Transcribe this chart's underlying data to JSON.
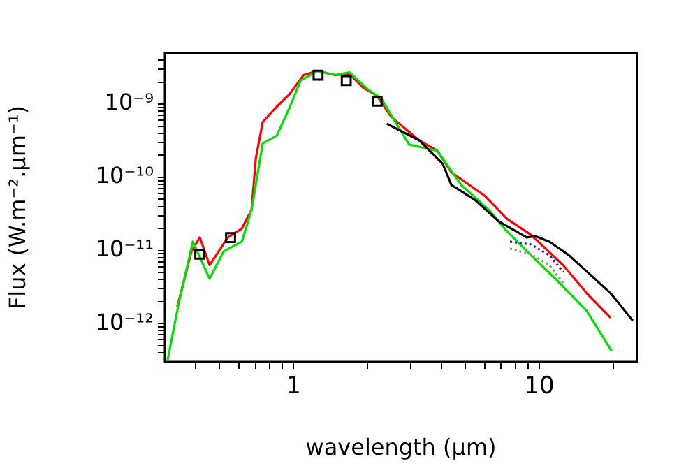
{
  "chart_data": {
    "type": "line",
    "xlabel": "wavelength (μm)",
    "ylabel": "Flux (W.m⁻².μm⁻¹)",
    "log": "xy",
    "grid": false,
    "legend": false,
    "xlim": [
      0.3,
      25
    ],
    "ylim": [
      3e-13,
      5e-09
    ],
    "xticks": [
      {
        "value": 0.4,
        "label": null
      },
      {
        "value": 0.5,
        "label": null
      },
      {
        "value": 0.6,
        "label": null
      },
      {
        "value": 0.7,
        "label": null
      },
      {
        "value": 0.8,
        "label": null
      },
      {
        "value": 0.9,
        "label": null
      },
      1,
      {
        "value": 2,
        "label": null
      },
      {
        "value": 3,
        "label": null
      },
      {
        "value": 4,
        "label": null
      },
      {
        "value": 5,
        "label": null
      },
      {
        "value": 6,
        "label": null
      },
      {
        "value": 7,
        "label": null
      },
      {
        "value": 8,
        "label": null
      },
      {
        "value": 9,
        "label": null
      },
      10,
      {
        "value": 20,
        "label": null
      }
    ],
    "yticks": [
      {
        "value": 4e-13,
        "label": null
      },
      {
        "value": 5e-13,
        "label": null
      },
      {
        "value": 6e-13,
        "label": null
      },
      {
        "value": 7e-13,
        "label": null
      },
      {
        "value": 8e-13,
        "label": null
      },
      {
        "value": 9e-13,
        "label": null
      },
      {
        "value": 1e-12,
        "label": "10⁻¹²"
      },
      {
        "value": 2e-12,
        "label": null
      },
      {
        "value": 3e-12,
        "label": null
      },
      {
        "value": 4e-12,
        "label": null
      },
      {
        "value": 5e-12,
        "label": null
      },
      {
        "value": 6e-12,
        "label": null
      },
      {
        "value": 7e-12,
        "label": null
      },
      {
        "value": 8e-12,
        "label": null
      },
      {
        "value": 9e-12,
        "label": null
      },
      {
        "value": 1e-11,
        "label": "10⁻¹¹"
      },
      {
        "value": 2e-11,
        "label": null
      },
      {
        "value": 3e-11,
        "label": null
      },
      {
        "value": 4e-11,
        "label": null
      },
      {
        "value": 5e-11,
        "label": null
      },
      {
        "value": 6e-11,
        "label": null
      },
      {
        "value": 7e-11,
        "label": null
      },
      {
        "value": 8e-11,
        "label": null
      },
      {
        "value": 9e-11,
        "label": null
      },
      {
        "value": 1e-10,
        "label": "10⁻¹⁰"
      },
      {
        "value": 2e-10,
        "label": null
      },
      {
        "value": 3e-10,
        "label": null
      },
      {
        "value": 4e-10,
        "label": null
      },
      {
        "value": 5e-10,
        "label": null
      },
      {
        "value": 6e-10,
        "label": null
      },
      {
        "value": 7e-10,
        "label": null
      },
      {
        "value": 8e-10,
        "label": null
      },
      {
        "value": 9e-10,
        "label": null
      },
      {
        "value": 1e-09,
        "label": "10⁻⁹"
      },
      {
        "value": 2e-09,
        "label": null
      },
      {
        "value": 3e-09,
        "label": null
      },
      {
        "value": 4e-09,
        "label": null
      }
    ],
    "series": [
      {
        "color": "#ff0000",
        "marker": "none",
        "line_style": "solid",
        "x": [
          0.337,
          0.385,
          0.416,
          0.456,
          0.541,
          0.617,
          0.676,
          0.703,
          0.75,
          0.843,
          0.962,
          1.1,
          1.25,
          1.48,
          1.69,
          1.92,
          2.19,
          2.5,
          3.25,
          3.85,
          4.39,
          6.0,
          7.4,
          9.25,
          12.5,
          15.6,
          19.5
        ],
        "values": [
          1.7e-12,
          9.7e-12,
          1.51e-11,
          6.3e-12,
          1.51e-11,
          2e-11,
          3.6e-11,
          1.8e-10,
          5.7e-10,
          8.8e-10,
          1.36e-09,
          2.5e-09,
          2.85e-09,
          2.5e-09,
          2.61e-09,
          1.69e-09,
          1.3e-09,
          6.7e-10,
          3.2e-10,
          2.3e-10,
          1.17e-10,
          5.6e-11,
          2.7e-11,
          1.64e-11,
          6.3e-12,
          2.6e-12,
          1.2e-12
        ]
      },
      {
        "color": "#00e000",
        "marker": "none",
        "line_style": "solid",
        "x": [
          0.308,
          0.342,
          0.39,
          0.456,
          0.52,
          0.617,
          0.676,
          0.75,
          0.855,
          0.962,
          1.07,
          1.25,
          1.48,
          1.69,
          2.0,
          2.28,
          2.56,
          2.96,
          3.85,
          4.81,
          6.24,
          7.31,
          9.25,
          12.0,
          15.6,
          19.7
        ],
        "values": [
          3.2e-13,
          1.93e-12,
          1.32e-11,
          4.1e-12,
          9.7e-12,
          1.32e-11,
          3.6e-11,
          2.9e-10,
          3.7e-10,
          8.8e-10,
          2.1e-09,
          2.85e-09,
          2.5e-09,
          2.73e-09,
          1.62e-09,
          1.19e-09,
          6.2e-10,
          2.8e-10,
          2.3e-10,
          7.9e-11,
          3.6e-11,
          1.9e-11,
          8.6e-12,
          3.7e-12,
          1.49e-12,
          4.2e-13
        ]
      },
      {
        "color": "#000000",
        "marker": "none",
        "line_style": "solid",
        "x": [
          2.4,
          3.25,
          4.05,
          4.39,
          5.48,
          6.84,
          8.89,
          9.61,
          11.0,
          13.2,
          16.2,
          19.5,
          24.0
        ],
        "values": [
          5.4e-10,
          3.2e-10,
          1.53e-10,
          7.9e-11,
          4.9e-11,
          2.5e-11,
          1.51e-11,
          1.57e-11,
          1.32e-11,
          8.6e-12,
          4.6e-12,
          2.6e-12,
          1.1e-12
        ]
      },
      {
        "color": "#2020b0",
        "marker": "none",
        "line_style": "dotted",
        "x": [
          7.6,
          9.25,
          11.0,
          12.5
        ],
        "values": [
          1.32e-11,
          1.21e-11,
          8.6e-12,
          5.1e-12
        ]
      },
      {
        "color": "#8a9a6a",
        "marker": "none",
        "line_style": "dotted",
        "x": [
          7.6,
          9.25,
          11.0,
          12.5
        ],
        "values": [
          1.06e-11,
          8.9e-12,
          6.3e-12,
          3.6e-12
        ]
      },
      {
        "type": "scatter",
        "color": "#000000",
        "marker": "square",
        "x": [
          0.416,
          0.555,
          1.26,
          1.64,
          2.19
        ],
        "values": [
          8.9e-12,
          1.5e-11,
          2.5e-09,
          2.1e-09,
          1.1e-09
        ]
      }
    ]
  }
}
